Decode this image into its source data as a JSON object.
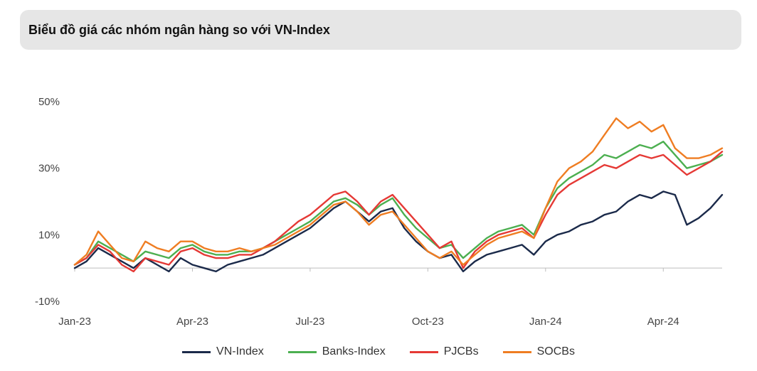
{
  "title": "Biểu đồ giá các nhóm ngân hàng so với VN-Index",
  "chart_data": {
    "type": "line",
    "title": "Biểu đồ giá các nhóm ngân hàng so với VN-Index",
    "xlabel": "",
    "ylabel": "",
    "ylim": [
      -10,
      50
    ],
    "y_ticks": [
      {
        "value": 50,
        "label": "50%"
      },
      {
        "value": 30,
        "label": "30%"
      },
      {
        "value": 10,
        "label": "10%"
      },
      {
        "value": -10,
        "label": "-10%"
      }
    ],
    "x_ticks": [
      {
        "t": 0,
        "label": "Jan-23"
      },
      {
        "t": 3,
        "label": "Apr-23"
      },
      {
        "t": 6,
        "label": "Jul-23"
      },
      {
        "t": 9,
        "label": "Oct-23"
      },
      {
        "t": 12,
        "label": "Jan-24"
      },
      {
        "t": 15,
        "label": "Apr-24"
      }
    ],
    "x_range": [
      0,
      16.5
    ],
    "series": [
      {
        "name": "VN-Index",
        "color": "#1b2a4a",
        "x": [
          0,
          0.3,
          0.6,
          0.9,
          1.2,
          1.5,
          1.8,
          2.1,
          2.4,
          2.7,
          3.0,
          3.3,
          3.6,
          3.9,
          4.2,
          4.5,
          4.8,
          5.1,
          5.4,
          5.7,
          6.0,
          6.3,
          6.6,
          6.9,
          7.2,
          7.5,
          7.8,
          8.1,
          8.4,
          8.7,
          9.0,
          9.3,
          9.6,
          9.9,
          10.2,
          10.5,
          10.8,
          11.1,
          11.4,
          11.7,
          12.0,
          12.3,
          12.6,
          12.9,
          13.2,
          13.5,
          13.8,
          14.1,
          14.4,
          14.7,
          15.0,
          15.3,
          15.6,
          15.9,
          16.2,
          16.5
        ],
        "values": [
          0,
          2,
          6,
          4,
          2,
          0,
          3,
          1,
          -1,
          3,
          1,
          0,
          -1,
          1,
          2,
          3,
          4,
          6,
          8,
          10,
          12,
          15,
          18,
          20,
          17,
          14,
          17,
          18,
          12,
          8,
          5,
          3,
          4,
          -1,
          2,
          4,
          5,
          6,
          7,
          4,
          8,
          10,
          11,
          13,
          14,
          16,
          17,
          20,
          22,
          21,
          23,
          22,
          13,
          15,
          18,
          22
        ]
      },
      {
        "name": "Banks-Index",
        "color": "#4caf50",
        "x": [
          0,
          0.3,
          0.6,
          0.9,
          1.2,
          1.5,
          1.8,
          2.1,
          2.4,
          2.7,
          3.0,
          3.3,
          3.6,
          3.9,
          4.2,
          4.5,
          4.8,
          5.1,
          5.4,
          5.7,
          6.0,
          6.3,
          6.6,
          6.9,
          7.2,
          7.5,
          7.8,
          8.1,
          8.4,
          8.7,
          9.0,
          9.3,
          9.6,
          9.9,
          10.2,
          10.5,
          10.8,
          11.1,
          11.4,
          11.7,
          12.0,
          12.3,
          12.6,
          12.9,
          13.2,
          13.5,
          13.8,
          14.1,
          14.4,
          14.7,
          15.0,
          15.3,
          15.6,
          15.9,
          16.2,
          16.5
        ],
        "values": [
          1,
          3,
          8,
          6,
          4,
          2,
          5,
          4,
          3,
          6,
          7,
          5,
          4,
          4,
          5,
          5,
          6,
          8,
          10,
          12,
          14,
          17,
          20,
          21,
          19,
          16,
          19,
          21,
          16,
          12,
          9,
          6,
          7,
          3,
          6,
          9,
          11,
          12,
          13,
          10,
          18,
          24,
          27,
          29,
          31,
          34,
          33,
          35,
          37,
          36,
          38,
          34,
          30,
          31,
          32,
          34
        ]
      },
      {
        "name": "PJCBs",
        "color": "#e53935",
        "x": [
          0,
          0.3,
          0.6,
          0.9,
          1.2,
          1.5,
          1.8,
          2.1,
          2.4,
          2.7,
          3.0,
          3.3,
          3.6,
          3.9,
          4.2,
          4.5,
          4.8,
          5.1,
          5.4,
          5.7,
          6.0,
          6.3,
          6.6,
          6.9,
          7.2,
          7.5,
          7.8,
          8.1,
          8.4,
          8.7,
          9.0,
          9.3,
          9.6,
          9.9,
          10.2,
          10.5,
          10.8,
          11.1,
          11.4,
          11.7,
          12.0,
          12.3,
          12.6,
          12.9,
          13.2,
          13.5,
          13.8,
          14.1,
          14.4,
          14.7,
          15.0,
          15.3,
          15.6,
          15.9,
          16.2,
          16.5
        ],
        "values": [
          1,
          3,
          7,
          5,
          1,
          -1,
          3,
          2,
          1,
          5,
          6,
          4,
          3,
          3,
          4,
          4,
          6,
          8,
          11,
          14,
          16,
          19,
          22,
          23,
          20,
          16,
          20,
          22,
          18,
          14,
          10,
          6,
          8,
          0,
          5,
          8,
          10,
          11,
          12,
          9,
          16,
          22,
          25,
          27,
          29,
          31,
          30,
          32,
          34,
          33,
          34,
          31,
          28,
          30,
          32,
          35
        ]
      },
      {
        "name": "SOCBs",
        "color": "#ef7d22",
        "x": [
          0,
          0.3,
          0.6,
          0.9,
          1.2,
          1.5,
          1.8,
          2.1,
          2.4,
          2.7,
          3.0,
          3.3,
          3.6,
          3.9,
          4.2,
          4.5,
          4.8,
          5.1,
          5.4,
          5.7,
          6.0,
          6.3,
          6.6,
          6.9,
          7.2,
          7.5,
          7.8,
          8.1,
          8.4,
          8.7,
          9.0,
          9.3,
          9.6,
          9.9,
          10.2,
          10.5,
          10.8,
          11.1,
          11.4,
          11.7,
          12.0,
          12.3,
          12.6,
          12.9,
          13.2,
          13.5,
          13.8,
          14.1,
          14.4,
          14.7,
          15.0,
          15.3,
          15.6,
          15.9,
          16.2,
          16.5
        ],
        "values": [
          1,
          4,
          11,
          7,
          3,
          2,
          8,
          6,
          5,
          8,
          8,
          6,
          5,
          5,
          6,
          5,
          6,
          7,
          9,
          11,
          13,
          16,
          19,
          20,
          17,
          13,
          16,
          17,
          13,
          9,
          5,
          3,
          5,
          1,
          4,
          7,
          9,
          10,
          11,
          9,
          18,
          26,
          30,
          32,
          35,
          40,
          45,
          42,
          44,
          41,
          43,
          36,
          33,
          33,
          34,
          36
        ]
      }
    ]
  }
}
